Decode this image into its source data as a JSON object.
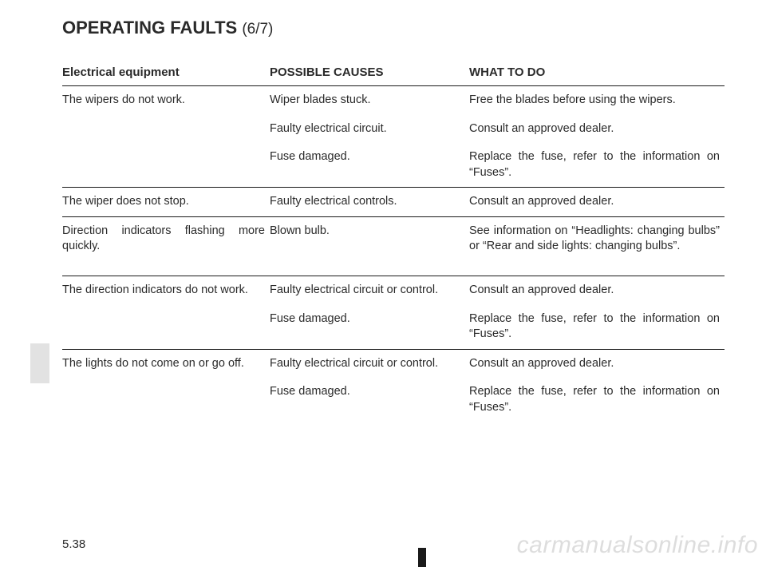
{
  "title": "OPERATING FAULTS",
  "title_sub": "(6/7)",
  "headers": {
    "c1": "Electrical equipment",
    "c2": "POSSIBLE CAUSES",
    "c3": "WHAT TO DO"
  },
  "rows": [
    {
      "c1": "The wipers do not work.",
      "c2": "Wiper blades stuck.",
      "c3": "Free the blades before using the wipers.",
      "sep": false
    },
    {
      "c1": "",
      "c2": "Faulty electrical circuit.",
      "c3": "Consult an approved dealer.",
      "sep": false
    },
    {
      "c1": "",
      "c2": "Fuse damaged.",
      "c3": "Replace the fuse, refer to the information on “Fuses”.",
      "sep": true
    },
    {
      "c1": "The wiper does not stop.",
      "c2": "Faulty electrical controls.",
      "c3": "Consult an approved dealer.",
      "sep": true,
      "thin": true
    },
    {
      "c1": "Direction indicators flashing more quickly.",
      "c2": "Blown bulb.",
      "c3": "See information on “Headlights: changing bulbs” or “Rear and side lights: changing bulbs”.",
      "sep": true,
      "extra_pad": true
    },
    {
      "c1": "The direction indicators do not work.",
      "c2": "Faulty electrical circuit or control.",
      "c3": "Consult an approved dealer.",
      "sep": false
    },
    {
      "c1": "",
      "c2": "Fuse damaged.",
      "c3": "Replace the fuse, refer to the information on “Fuses”.",
      "sep": true
    },
    {
      "c1": "The lights do not come on or go off.",
      "c2": "Faulty electrical circuit or control.",
      "c3": "Consult an approved dealer.",
      "sep": false
    },
    {
      "c1": "",
      "c2": "Fuse damaged.",
      "c3": "Replace the fuse, refer to the information on “Fuses”.",
      "sep": false
    }
  ],
  "page_number": "5.38",
  "watermark": "carmanualsonline.info"
}
